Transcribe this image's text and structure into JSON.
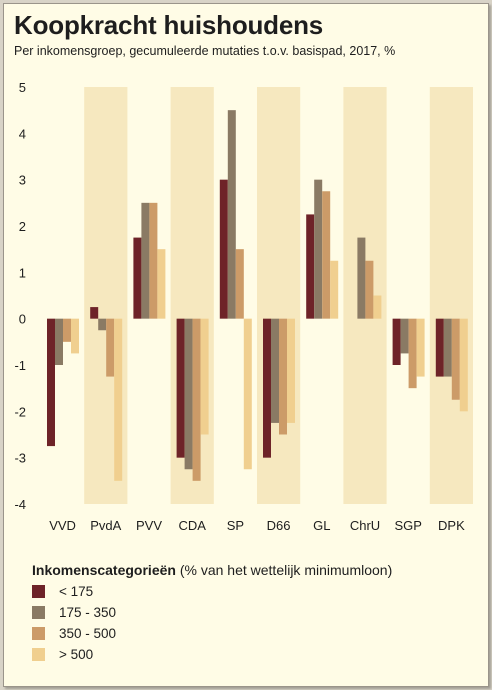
{
  "title": "Koopkracht huishoudens",
  "subtitle": "Per inkomensgroep, gecumuleerde mutaties t.o.v. basispad, 2017, %",
  "legend": {
    "title_bold": "Inkomenscategorieën",
    "title_rest": " (% van het wettelijk minimumloon)"
  },
  "colors": {
    "background": "#fffce6",
    "band": "#f6e8bf",
    "series": [
      "#6e2328",
      "#8a7a64",
      "#cc9b68",
      "#f0cf8f"
    ]
  },
  "chart_data": {
    "type": "bar",
    "title": "Koopkracht huishoudens",
    "subtitle": "Per inkomensgroep, gecumuleerde mutaties t.o.v. basispad, 2017, %",
    "categories": [
      "VVD",
      "PvdA",
      "PVV",
      "CDA",
      "SP",
      "D66",
      "GL",
      "ChrU",
      "SGP",
      "DPK"
    ],
    "ylim": [
      -4,
      5
    ],
    "yticks": [
      5,
      4,
      3,
      2,
      1,
      0,
      -1,
      -2,
      -3,
      -4
    ],
    "grid": false,
    "legend_position": "bottom-left",
    "series": [
      {
        "name": "< 175",
        "values": [
          -2.75,
          0.25,
          1.75,
          -3.0,
          3.0,
          -3.0,
          2.25,
          0.0,
          -1.0,
          -1.25
        ]
      },
      {
        "name": "175 - 350",
        "values": [
          -1.0,
          -0.25,
          2.5,
          -3.25,
          4.5,
          -2.25,
          3.0,
          1.75,
          -0.75,
          -1.25
        ]
      },
      {
        "name": "350 - 500",
        "values": [
          -0.5,
          -1.25,
          2.5,
          -3.5,
          1.5,
          -2.5,
          2.75,
          1.25,
          -1.5,
          -1.75
        ]
      },
      {
        "name": "> 500",
        "values": [
          -0.75,
          -3.5,
          1.5,
          -2.5,
          -3.25,
          -2.25,
          1.25,
          0.5,
          -1.25,
          -2.0
        ]
      }
    ]
  }
}
